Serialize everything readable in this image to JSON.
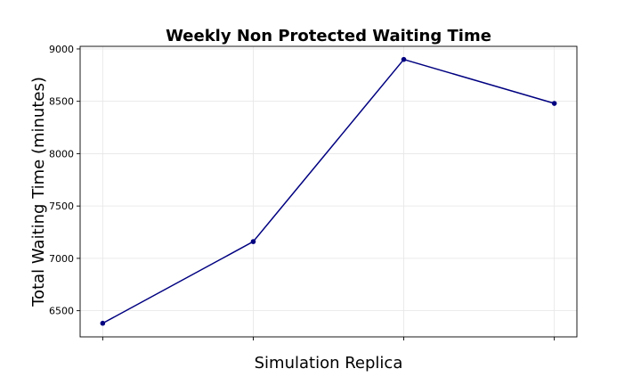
{
  "chart_data": {
    "type": "line",
    "title": "Weekly Non Protected Waiting Time",
    "xlabel": "Simulation Replica",
    "ylabel": "Total Waiting Time (minutes)",
    "x": [
      0,
      1,
      2,
      3
    ],
    "series": [
      {
        "values": [
          6380,
          7160,
          8900,
          8480
        ]
      }
    ],
    "xlim": [
      -0.15,
      3.15
    ],
    "ylim": [
      6250,
      9025
    ],
    "yticks": [
      6500,
      7000,
      7500,
      8000,
      8500,
      9000
    ],
    "xtick_labels_visible": false,
    "grid": true,
    "line_color": "#000080"
  }
}
